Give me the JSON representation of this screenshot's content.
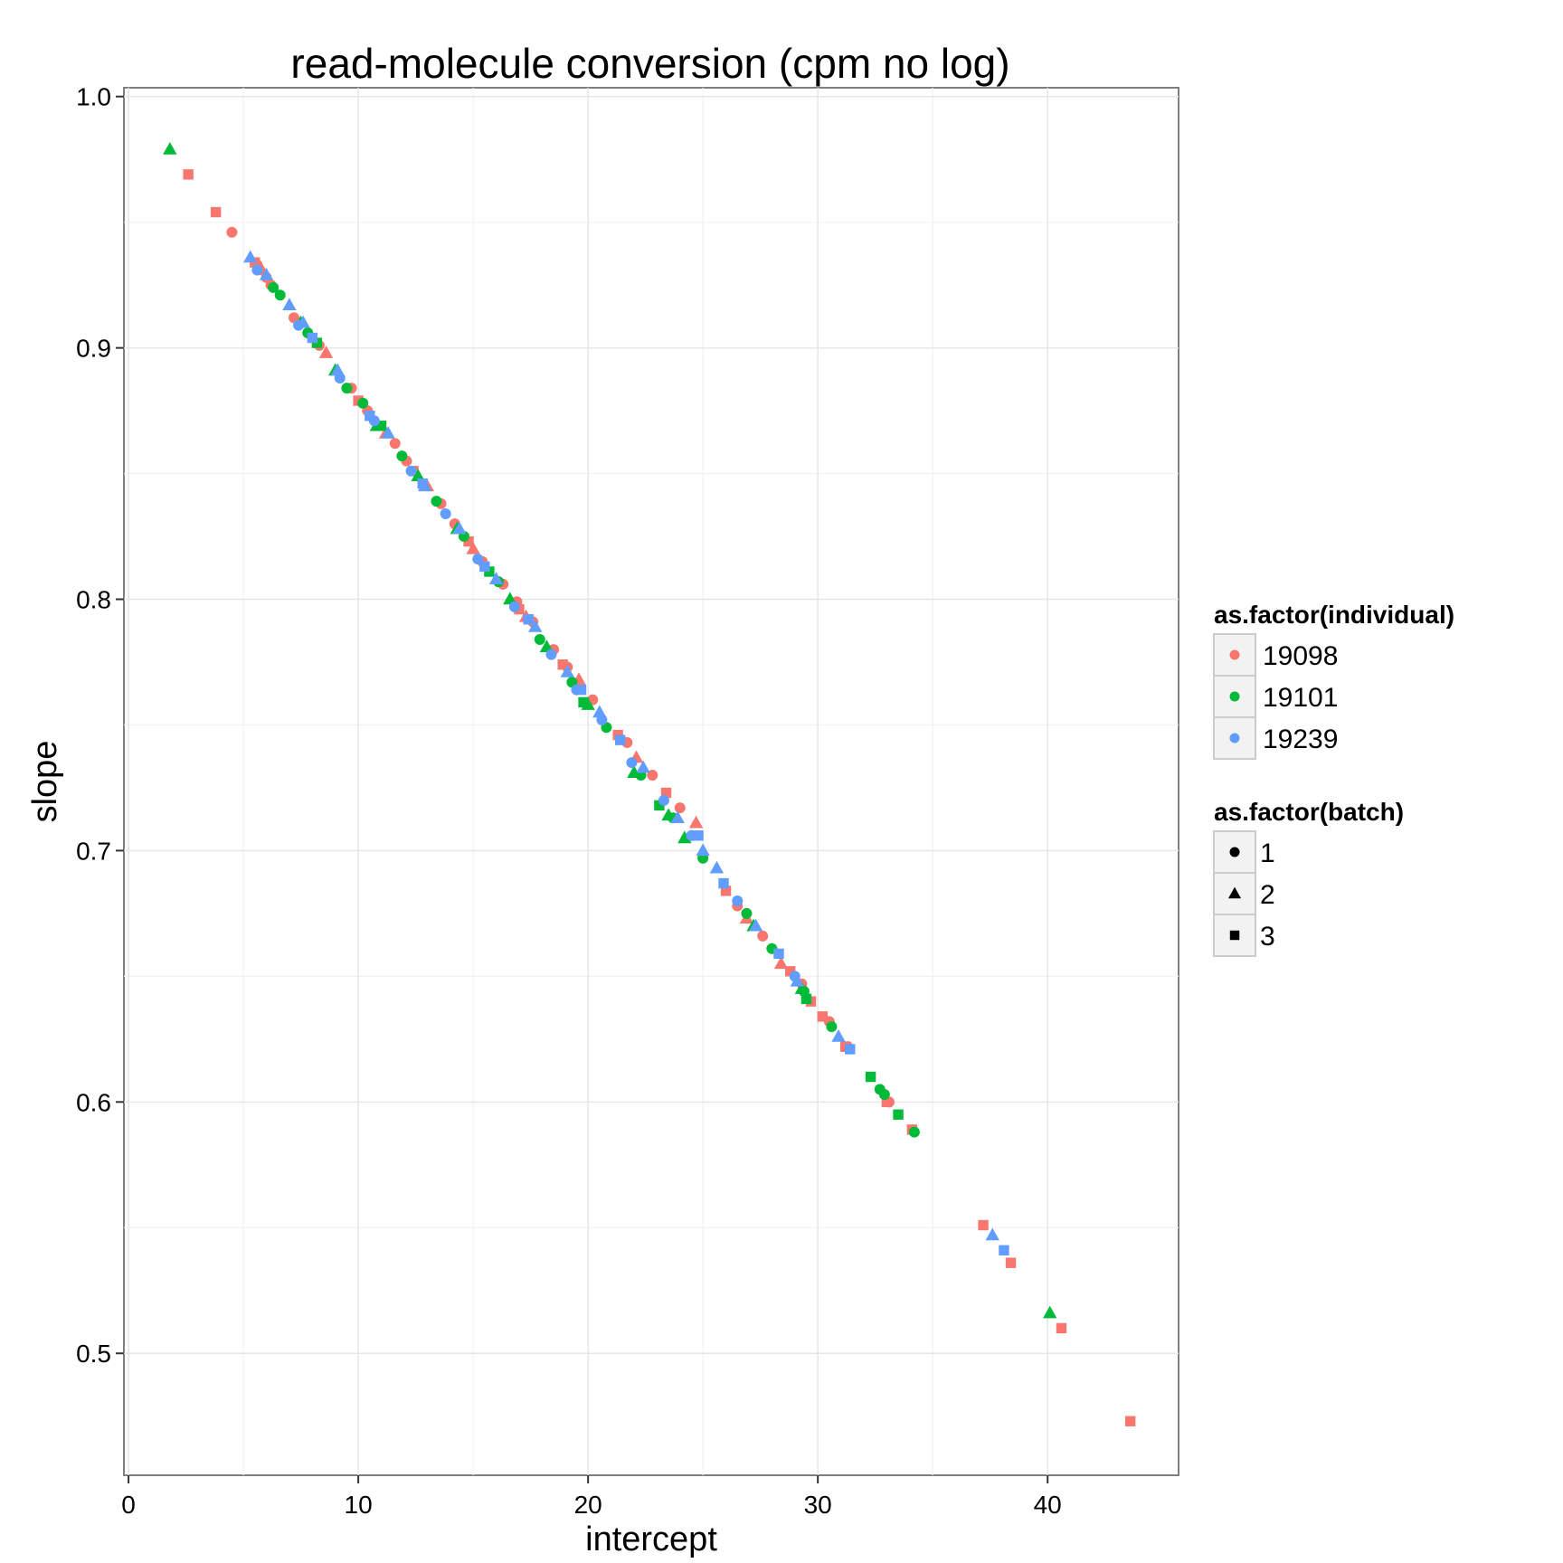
{
  "chart_data": {
    "type": "scatter",
    "title": "read-molecule conversion (cpm no log)",
    "xlabel": "intercept",
    "ylabel": "slope",
    "xlim": [
      -0.2,
      45.7
    ],
    "ylim": [
      0.4515,
      1.0035
    ],
    "x_ticks": [
      0,
      10,
      20,
      30,
      40
    ],
    "y_ticks": [
      0.5,
      0.6,
      0.7,
      0.8,
      0.9,
      1.0
    ],
    "x_tick_labels": [
      "0",
      "10",
      "20",
      "30",
      "40"
    ],
    "y_tick_labels": [
      "0.5",
      "0.6",
      "0.7",
      "0.8",
      "0.9",
      "1.0"
    ],
    "grid": true,
    "legend_position": "right",
    "legends": {
      "color": {
        "title": "as.factor(individual)",
        "entries": [
          {
            "label": "19098",
            "color": "#F8766D"
          },
          {
            "label": "19101",
            "color": "#00BA38"
          },
          {
            "label": "19239",
            "color": "#619CFF"
          }
        ]
      },
      "shape": {
        "title": "as.factor(batch)",
        "entries": [
          {
            "label": "1",
            "shape": "circle"
          },
          {
            "label": "2",
            "shape": "triangle"
          },
          {
            "label": "3",
            "shape": "square"
          }
        ]
      }
    },
    "series": [
      {
        "individual": "19098",
        "batch": "1",
        "x": [
          4.5,
          5.6,
          6.0,
          6.2,
          7.2,
          8.3,
          9.7,
          10.4,
          11.6,
          12.1,
          13.6,
          14.2,
          15.4,
          16.3,
          16.9,
          17.6,
          18.5,
          19.1,
          20.2,
          21.7,
          22.8,
          24.0,
          26.5,
          27.6,
          29.3,
          30.5,
          31.3,
          33.1
        ],
        "y": [
          0.946,
          0.933,
          0.928,
          0.925,
          0.912,
          0.901,
          0.884,
          0.875,
          0.862,
          0.855,
          0.838,
          0.83,
          0.815,
          0.806,
          0.799,
          0.791,
          0.78,
          0.773,
          0.76,
          0.743,
          0.73,
          0.717,
          0.678,
          0.666,
          0.647,
          0.632,
          0.622,
          0.6
        ]
      },
      {
        "individual": "19098",
        "batch": "2",
        "x": [
          5.8,
          8.6,
          11.2,
          13.0,
          15.0,
          17.3,
          19.6,
          22.1,
          24.7,
          26.9,
          28.4
        ],
        "y": [
          0.931,
          0.898,
          0.866,
          0.845,
          0.82,
          0.793,
          0.768,
          0.737,
          0.711,
          0.673,
          0.655
        ]
      },
      {
        "individual": "19098",
        "batch": "3",
        "x": [
          2.6,
          3.8,
          5.5,
          10.0,
          12.4,
          14.8,
          17.0,
          18.9,
          21.3,
          23.4,
          26.0,
          28.8,
          29.7,
          30.2,
          31.2,
          33.0,
          34.1,
          37.2,
          38.4,
          40.6,
          43.6
        ],
        "y": [
          0.969,
          0.954,
          0.934,
          0.879,
          0.851,
          0.823,
          0.796,
          0.774,
          0.746,
          0.723,
          0.684,
          0.652,
          0.64,
          0.634,
          0.622,
          0.6,
          0.589,
          0.551,
          0.536,
          0.51,
          0.473
        ]
      },
      {
        "individual": "19101",
        "batch": "1",
        "x": [
          6.3,
          6.6,
          7.8,
          9.5,
          10.2,
          11.9,
          13.4,
          14.6,
          16.1,
          17.9,
          19.3,
          20.8,
          22.3,
          23.7,
          25.0,
          26.9,
          28.0,
          29.4,
          30.6,
          32.7,
          32.9,
          34.2
        ],
        "y": [
          0.924,
          0.921,
          0.906,
          0.884,
          0.878,
          0.857,
          0.839,
          0.825,
          0.807,
          0.784,
          0.767,
          0.749,
          0.73,
          0.713,
          0.697,
          0.675,
          0.661,
          0.644,
          0.63,
          0.605,
          0.603,
          0.588
        ]
      },
      {
        "individual": "19101",
        "batch": "2",
        "x": [
          1.8,
          7.5,
          9.0,
          10.8,
          12.6,
          14.3,
          16.6,
          18.2,
          20.0,
          22.0,
          23.5,
          24.2,
          27.2,
          29.3,
          40.1
        ],
        "y": [
          0.979,
          0.91,
          0.891,
          0.869,
          0.849,
          0.828,
          0.8,
          0.781,
          0.758,
          0.731,
          0.714,
          0.705,
          0.67,
          0.645,
          0.516
        ]
      },
      {
        "individual": "19101",
        "batch": "3",
        "x": [
          8.2,
          11.0,
          15.7,
          19.8,
          23.1,
          29.5,
          32.3,
          33.5
        ],
        "y": [
          0.902,
          0.869,
          0.811,
          0.759,
          0.718,
          0.641,
          0.61,
          0.595
        ]
      },
      {
        "individual": "19239",
        "batch": "1",
        "x": [
          5.6,
          7.4,
          9.2,
          10.7,
          12.3,
          13.8,
          15.2,
          16.8,
          18.4,
          19.5,
          20.6,
          21.9,
          23.3,
          24.5,
          26.5,
          29.0
        ],
        "y": [
          0.931,
          0.909,
          0.888,
          0.871,
          0.851,
          0.834,
          0.816,
          0.797,
          0.778,
          0.764,
          0.752,
          0.735,
          0.72,
          0.706,
          0.68,
          0.65
        ]
      },
      {
        "individual": "19239",
        "batch": "2",
        "x": [
          5.3,
          6.0,
          7.0,
          7.6,
          9.1,
          11.3,
          12.9,
          14.4,
          16.0,
          17.7,
          19.1,
          20.5,
          22.4,
          23.9,
          25.0,
          25.6,
          27.3,
          29.1,
          30.9,
          37.6
        ],
        "y": [
          0.936,
          0.929,
          0.917,
          0.91,
          0.891,
          0.866,
          0.845,
          0.828,
          0.808,
          0.789,
          0.771,
          0.755,
          0.733,
          0.713,
          0.7,
          0.693,
          0.67,
          0.648,
          0.626,
          0.547
        ]
      },
      {
        "individual": "19239",
        "batch": "3",
        "x": [
          8.0,
          10.5,
          12.8,
          15.5,
          17.4,
          19.7,
          21.4,
          24.8,
          25.9,
          28.3,
          31.4,
          38.1
        ],
        "y": [
          0.904,
          0.873,
          0.846,
          0.813,
          0.792,
          0.764,
          0.744,
          0.706,
          0.687,
          0.659,
          0.621,
          0.541
        ]
      }
    ]
  }
}
